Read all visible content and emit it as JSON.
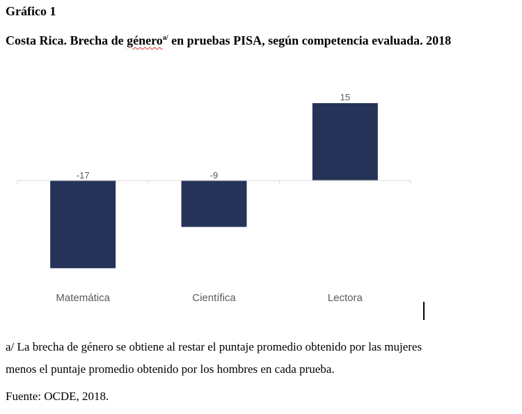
{
  "figure_label": "Gráfico 1",
  "title": {
    "prefix": "Costa Rica. Brecha de ",
    "underlined": "género",
    "sup": "a/",
    "suffix": " en pruebas PISA, según competencia evaluada. 2018"
  },
  "chart_data": {
    "type": "bar",
    "categories": [
      "Matemática",
      "Científica",
      "Lectora"
    ],
    "values": [
      -17,
      -9,
      15
    ],
    "data_labels": [
      "-17",
      "-9",
      "15"
    ],
    "ylim": [
      -17,
      15
    ],
    "bar_color": "#263459",
    "axis_color": "#d9d9d9",
    "label_color": "#595959",
    "grid": false,
    "legend": "none"
  },
  "notes": {
    "footnote_line1": "a/ La brecha de género se obtiene al restar el puntaje promedio obtenido por las mujeres",
    "footnote_line2": "menos el puntaje promedio obtenido por los hombres en cada prueba.",
    "source": "Fuente: OCDE, 2018."
  }
}
